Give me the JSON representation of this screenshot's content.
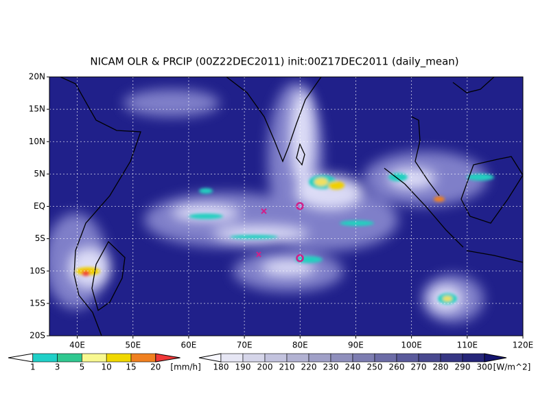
{
  "title": "NICAM OLR & PRCIP (00Z22DEC2011) init:00Z17DEC2011 (daily_mean)",
  "lat_labels": [
    "20N",
    "15N",
    "10N",
    "5N",
    "EQ",
    "5S",
    "10S",
    "15S",
    "20S"
  ],
  "lon_labels": [
    "40E",
    "50E",
    "60E",
    "70E",
    "80E",
    "90E",
    "100E",
    "110E",
    "120E"
  ],
  "precip_legend": {
    "labels": [
      "1",
      "3",
      "5",
      "10",
      "15",
      "20"
    ],
    "unit": "[mm/h]"
  },
  "olr_legend": {
    "labels": [
      "180",
      "190",
      "200",
      "210",
      "220",
      "230",
      "240",
      "250",
      "260",
      "270",
      "280",
      "290",
      "300"
    ],
    "unit": "[W/m^2]"
  }
}
